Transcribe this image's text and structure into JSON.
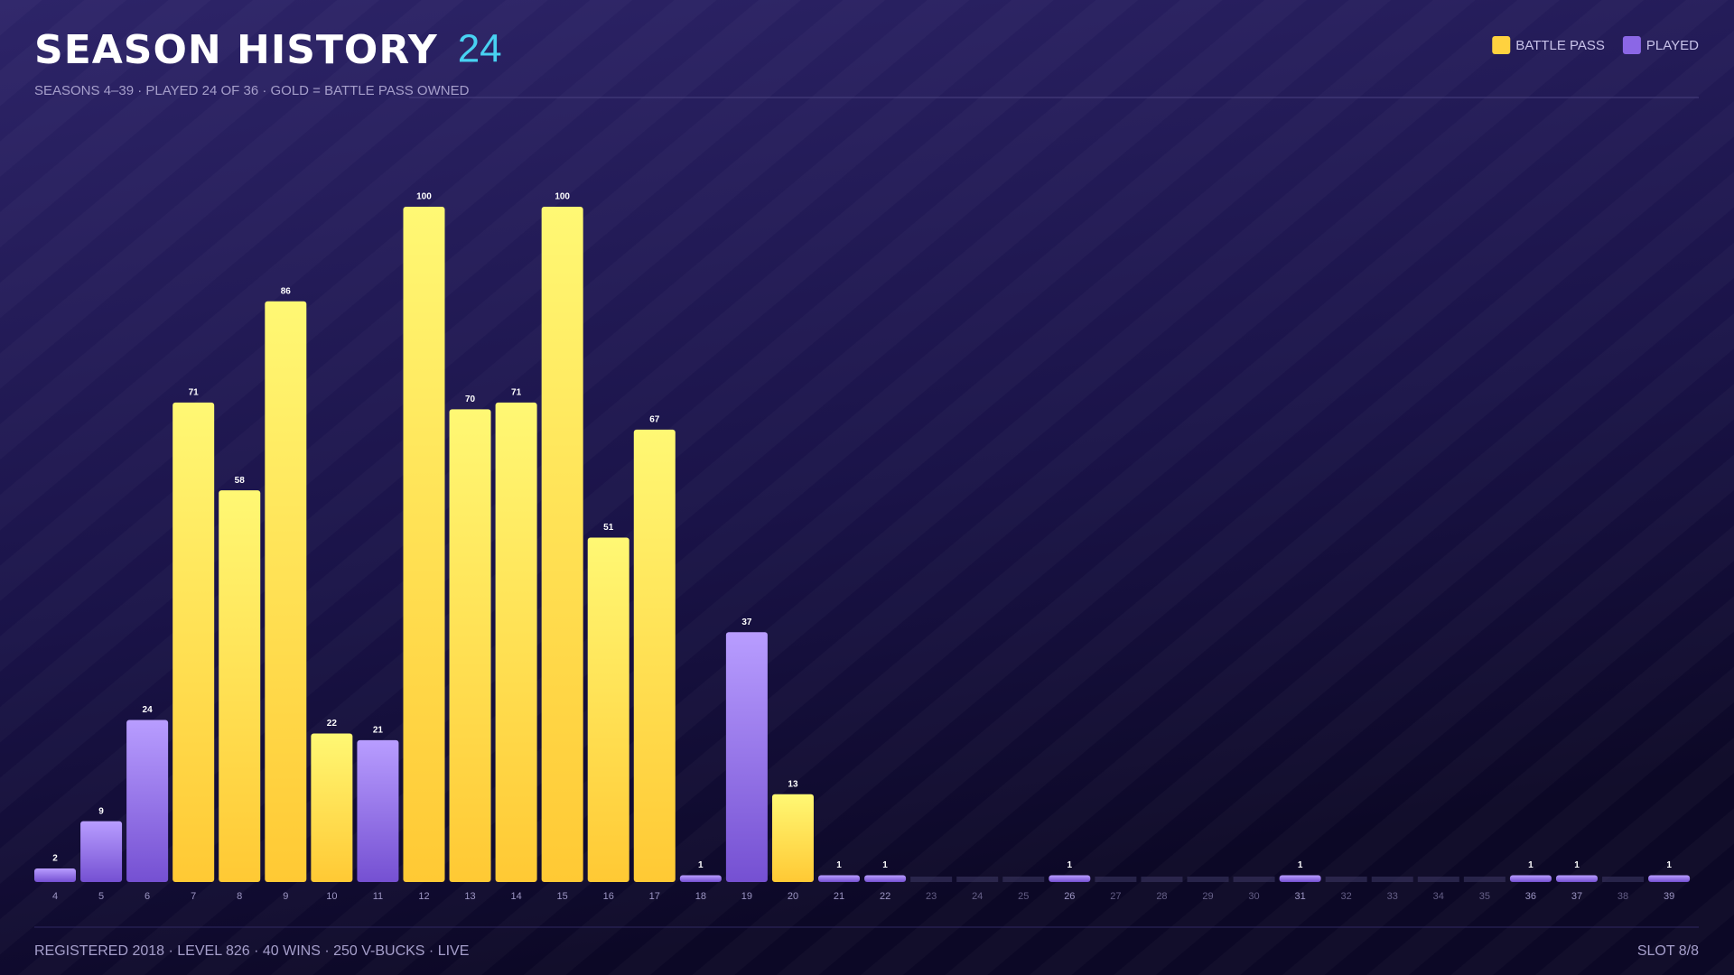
{
  "chart_data": {
    "type": "bar",
    "title": "SEASON HISTORY",
    "title_count": 24,
    "subtitle": "SEASONS 4–39 · PLAYED 24 OF 36 · GOLD = BATTLE PASS OWNED",
    "categories": [
      "4",
      "5",
      "6",
      "7",
      "8",
      "9",
      "10",
      "11",
      "12",
      "13",
      "14",
      "15",
      "16",
      "17",
      "18",
      "19",
      "20",
      "21",
      "22",
      "23",
      "24",
      "25",
      "26",
      "27",
      "28",
      "29",
      "30",
      "31",
      "32",
      "33",
      "34",
      "35",
      "36",
      "37",
      "38",
      "39"
    ],
    "series": [
      {
        "name": "BATTLE PASS",
        "color": "#ffd23f",
        "values": [
          null,
          null,
          null,
          71,
          58,
          86,
          22,
          null,
          100,
          70,
          71,
          100,
          51,
          67,
          null,
          null,
          13,
          null,
          null,
          null,
          null,
          null,
          null,
          null,
          null,
          null,
          null,
          null,
          null,
          null,
          null,
          null,
          null,
          null,
          null,
          null
        ]
      },
      {
        "name": "PLAYED",
        "color": "#8b67e6",
        "values": [
          2,
          9,
          24,
          null,
          null,
          null,
          null,
          21,
          null,
          null,
          null,
          null,
          null,
          null,
          1,
          37,
          null,
          1,
          1,
          null,
          null,
          null,
          1,
          null,
          null,
          null,
          null,
          1,
          null,
          null,
          null,
          null,
          1,
          1,
          null,
          1
        ]
      }
    ],
    "legend": "top-right",
    "footer": {
      "left": "REGISTERED 2018 · LEVEL 826 · 40 WINS · 250 V-BUCKS · LIVE",
      "right": "SLOT 8/8"
    }
  }
}
